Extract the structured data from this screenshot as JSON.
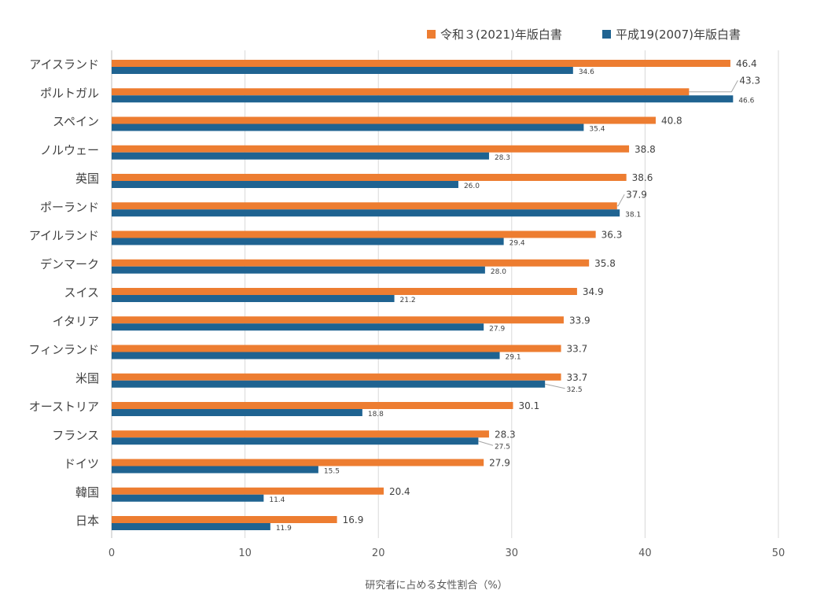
{
  "chart_data": {
    "type": "bar",
    "orientation": "horizontal",
    "categories": [
      "アイスランド",
      "ポルトガル",
      "スペイン",
      "ノルウェー",
      "英国",
      "ポーランド",
      "アイルランド",
      "デンマーク",
      "スイス",
      "イタリア",
      "フィンランド",
      "米国",
      "オーストリア",
      "フランス",
      "ドイツ",
      "韓国",
      "日本"
    ],
    "series": [
      {
        "name": "令和３(2021)年版白書",
        "color": "#ED7D31",
        "values": [
          46.4,
          43.3,
          40.8,
          38.8,
          38.6,
          37.9,
          36.3,
          35.8,
          34.9,
          33.9,
          33.7,
          33.7,
          30.1,
          28.3,
          27.9,
          20.4,
          16.9
        ],
        "labels": [
          "46.4",
          "43.3",
          "40.8",
          "38.8",
          "38.6",
          "37.9",
          "36.3",
          "35.8",
          "34.9",
          "33.9",
          "33.7",
          "33.7",
          "30.1",
          "28.3",
          "27.9",
          "20.4",
          "16.9"
        ]
      },
      {
        "name": "平成19(2007)年版白書",
        "color": "#1F6391",
        "values": [
          34.6,
          46.6,
          35.4,
          28.3,
          26.0,
          38.1,
          29.4,
          28.0,
          21.2,
          27.9,
          29.1,
          32.5,
          18.8,
          27.5,
          15.5,
          11.4,
          11.9
        ],
        "labels": [
          "34.6",
          "46.6",
          "35.4",
          "28.3",
          "26.0",
          "38.1",
          "29.4",
          "28.0",
          "21.2",
          "27.9",
          "29.1",
          "32.5",
          "18.8",
          "27.5",
          "15.5",
          "11.4",
          "11.9"
        ]
      }
    ],
    "xlabel": "研究者に占める女性割合（%）",
    "xlim": [
      0,
      50
    ],
    "xticks": [
      "0",
      "10",
      "20",
      "30",
      "40",
      "50"
    ],
    "grid": true,
    "legend": "top-right"
  }
}
